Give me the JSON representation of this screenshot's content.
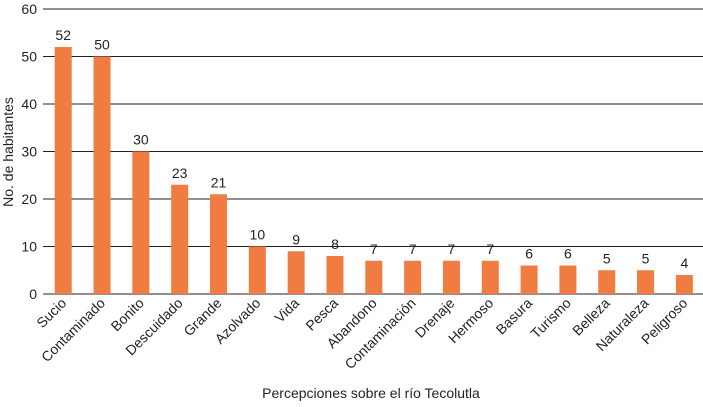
{
  "chart_data": {
    "type": "bar",
    "title": "",
    "xlabel": "Percepciones sobre el río Tecolutla",
    "ylabel": "No. de habitantes",
    "ylim": [
      0,
      60
    ],
    "yticks": [
      0,
      10,
      20,
      30,
      40,
      50,
      60
    ],
    "grid": true,
    "bar_color": "#f07c41",
    "grid_color": "#231f20",
    "categories": [
      "Sucio",
      "Contaminado",
      "Bonito",
      "Descuidado",
      "Grande",
      "Azolvado",
      "Vida",
      "Pesca",
      "Abandono",
      "Contaminación",
      "Drenaje",
      "Hermoso",
      "Basura",
      "Turismo",
      "Belleza",
      "Naturaleza",
      "Peligroso"
    ],
    "values": [
      52,
      50,
      30,
      23,
      21,
      10,
      9,
      8,
      7,
      7,
      7,
      7,
      6,
      6,
      5,
      5,
      4
    ]
  }
}
